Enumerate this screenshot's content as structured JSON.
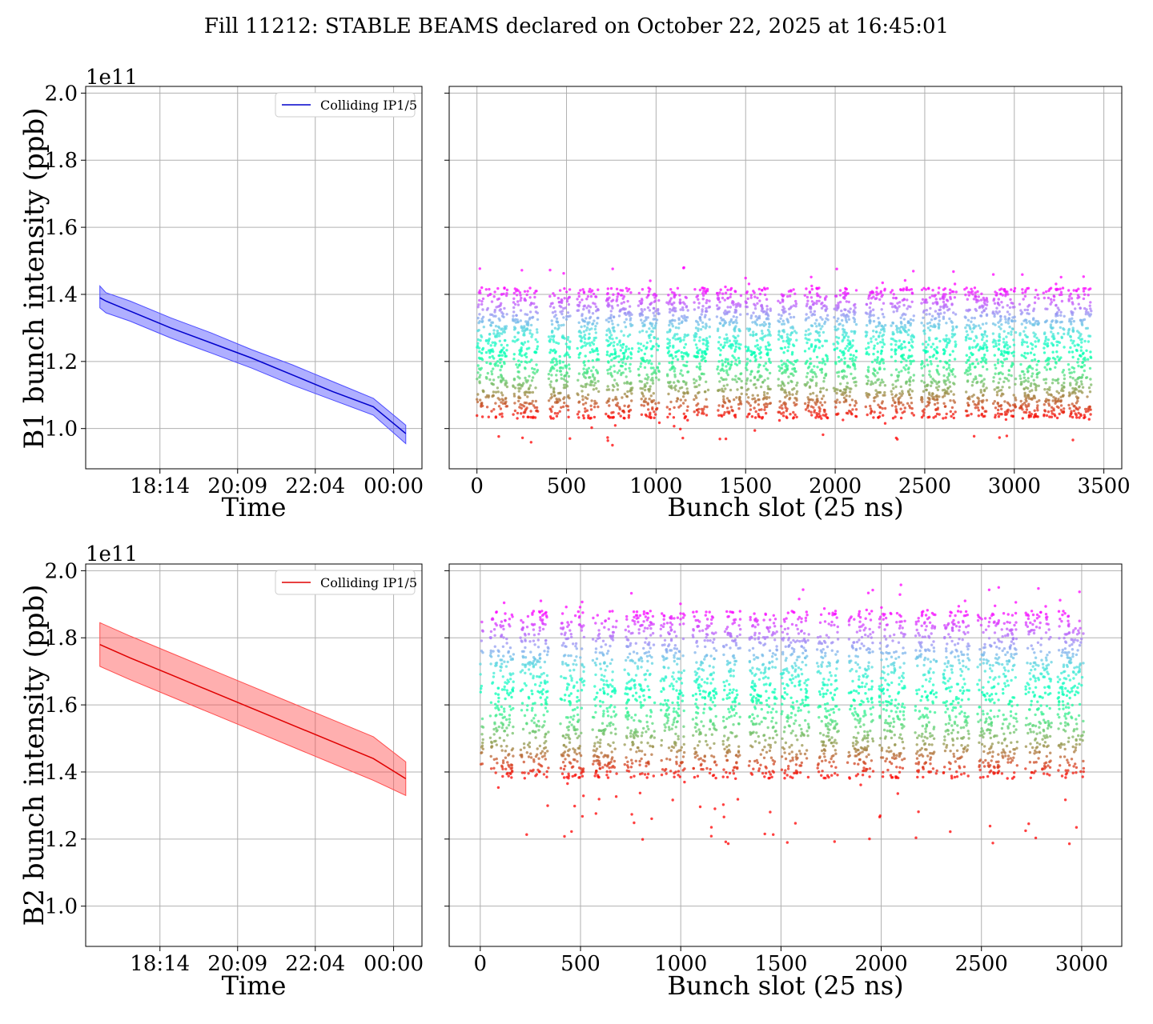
{
  "title": "Fill 11212: STABLE BEAMS declared on October 22, 2025 at 16:45:01",
  "colors": {
    "b1_line": "#0000cc",
    "b1_band": "#4d4dff",
    "b2_line": "#e00000",
    "b2_band": "#ff4d4d",
    "grid": "#b0b0b0"
  },
  "chart_data": [
    {
      "id": "b1_time",
      "type": "line",
      "ylabel": "B1 bunch intensity (ppb)",
      "xlabel": "Time",
      "y_offset_label": "1e11",
      "x_tick_labels": [
        "18:14",
        "20:09",
        "22:04",
        "00:00"
      ],
      "x_ticks_hours": [
        18.233,
        20.15,
        22.067,
        24.0
      ],
      "xlim_hours": [
        16.4,
        24.7
      ],
      "ylim": [
        0.88,
        2.02
      ],
      "y_ticks": [
        1.0,
        1.2,
        1.4,
        1.6,
        1.8,
        2.0
      ],
      "y_tick_labels": [
        "1.0",
        "1.2",
        "1.4",
        "1.6",
        "1.8",
        "2.0"
      ],
      "grid": true,
      "legend": {
        "label": "Colliding IP1/5",
        "placement": "top-right"
      },
      "series": [
        {
          "name": "Colliding IP1/5",
          "x_hours": [
            16.75,
            16.9,
            17.5,
            18.5,
            19.5,
            20.5,
            21.5,
            22.5,
            23.5,
            24.3
          ],
          "mean": [
            1.39,
            1.38,
            1.35,
            1.3,
            1.255,
            1.21,
            1.16,
            1.11,
            1.065,
            0.985
          ],
          "band_low": [
            1.36,
            1.345,
            1.32,
            1.27,
            1.225,
            1.18,
            1.13,
            1.085,
            1.04,
            0.955
          ],
          "band_high": [
            1.425,
            1.405,
            1.38,
            1.33,
            1.285,
            1.235,
            1.19,
            1.14,
            1.09,
            1.01
          ]
        }
      ]
    },
    {
      "id": "b1_slots",
      "type": "scatter",
      "xlabel": "Bunch slot (25 ns)",
      "x_ticks": [
        0,
        500,
        1000,
        1500,
        2000,
        2500,
        3000,
        3500
      ],
      "x_tick_labels": [
        "0",
        "500",
        "1000",
        "1500",
        "2000",
        "2500",
        "3000",
        "3500"
      ],
      "xlim": [
        -155,
        3600
      ],
      "ylim": [
        0.88,
        2.02
      ],
      "y_ticks": [
        1.0,
        1.2,
        1.4,
        1.6,
        1.8,
        2.0
      ],
      "grid": true,
      "colormap": "rainbow",
      "cluster_ranges": [
        [
          0,
          40
        ],
        [
          50,
          170
        ],
        [
          200,
          340
        ],
        [
          400,
          520
        ],
        [
          560,
          680
        ],
        [
          720,
          870
        ],
        [
          900,
          1020
        ],
        [
          1060,
          1180
        ],
        [
          1210,
          1300
        ],
        [
          1340,
          1480
        ],
        [
          1500,
          1640
        ],
        [
          1680,
          1790
        ],
        [
          1830,
          1960
        ],
        [
          1990,
          2120
        ],
        [
          2170,
          2280
        ],
        [
          2310,
          2440
        ],
        [
          2480,
          2590
        ],
        [
          2600,
          2680
        ],
        [
          2720,
          2850
        ],
        [
          2880,
          3010
        ],
        [
          3030,
          3140
        ],
        [
          3160,
          3280
        ],
        [
          3300,
          3430
        ]
      ],
      "value_range": [
        0.95,
        1.48
      ],
      "core_range": [
        1.03,
        1.42
      ]
    },
    {
      "id": "b2_time",
      "type": "line",
      "ylabel": "B2 bunch intensity (ppb)",
      "xlabel": "Time",
      "y_offset_label": "1e11",
      "x_tick_labels": [
        "18:14",
        "20:09",
        "22:04",
        "00:00"
      ],
      "x_ticks_hours": [
        18.233,
        20.15,
        22.067,
        24.0
      ],
      "xlim_hours": [
        16.4,
        24.7
      ],
      "ylim": [
        0.88,
        2.02
      ],
      "y_ticks": [
        1.0,
        1.2,
        1.4,
        1.6,
        1.8,
        2.0
      ],
      "y_tick_labels": [
        "1.0",
        "1.2",
        "1.4",
        "1.6",
        "1.8",
        "2.0"
      ],
      "grid": true,
      "legend": {
        "label": "Colliding IP1/5",
        "placement": "top-right"
      },
      "series": [
        {
          "name": "Colliding IP1/5",
          "x_hours": [
            16.75,
            17.5,
            18.5,
            19.5,
            20.5,
            21.5,
            22.5,
            23.5,
            24.3
          ],
          "mean": [
            1.78,
            1.74,
            1.69,
            1.64,
            1.59,
            1.54,
            1.49,
            1.44,
            1.38
          ],
          "band_low": [
            1.715,
            1.675,
            1.625,
            1.575,
            1.525,
            1.475,
            1.425,
            1.375,
            1.33
          ],
          "band_high": [
            1.845,
            1.805,
            1.755,
            1.705,
            1.655,
            1.605,
            1.555,
            1.505,
            1.43
          ]
        }
      ]
    },
    {
      "id": "b2_slots",
      "type": "scatter",
      "xlabel": "Bunch slot (25 ns)",
      "x_ticks": [
        0,
        500,
        1000,
        1500,
        2000,
        2500,
        3000
      ],
      "x_tick_labels": [
        "0",
        "500",
        "1000",
        "1500",
        "2000",
        "2500",
        "3000"
      ],
      "xlim": [
        -155,
        3200
      ],
      "ylim": [
        0.88,
        2.02
      ],
      "y_ticks": [
        1.0,
        1.2,
        1.4,
        1.6,
        1.8,
        2.0
      ],
      "grid": true,
      "colormap": "rainbow",
      "cluster_ranges": [
        [
          0,
          15
        ],
        [
          50,
          170
        ],
        [
          200,
          340
        ],
        [
          400,
          520
        ],
        [
          560,
          680
        ],
        [
          720,
          870
        ],
        [
          900,
          1020
        ],
        [
          1060,
          1180
        ],
        [
          1210,
          1300
        ],
        [
          1340,
          1480
        ],
        [
          1500,
          1640
        ],
        [
          1680,
          1790
        ],
        [
          1830,
          1960
        ],
        [
          1990,
          2120
        ],
        [
          2170,
          2280
        ],
        [
          2310,
          2440
        ],
        [
          2480,
          2590
        ],
        [
          2600,
          2680
        ],
        [
          2720,
          2850
        ],
        [
          2880,
          3010
        ]
      ],
      "value_range": [
        1.18,
        1.96
      ],
      "core_range": [
        1.38,
        1.88
      ]
    }
  ]
}
